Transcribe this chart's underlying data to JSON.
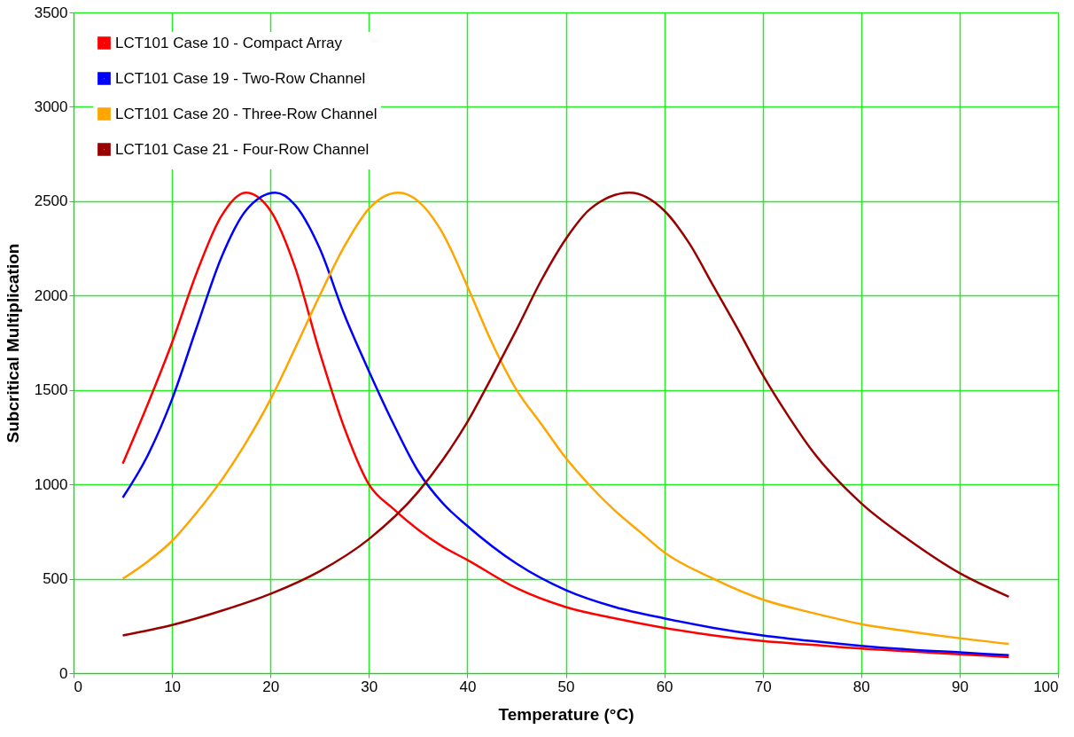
{
  "chart_data": {
    "type": "line",
    "xlabel": "Temperature (°C)",
    "ylabel": "Subcritical Multiplication",
    "xlim": [
      0,
      100
    ],
    "ylim": [
      0,
      3500
    ],
    "xticks": [
      0,
      10,
      20,
      30,
      40,
      50,
      60,
      70,
      80,
      90,
      100
    ],
    "yticks": [
      0,
      500,
      1000,
      1500,
      2000,
      2500,
      3000,
      3500
    ],
    "grid": true,
    "legend": "top left",
    "marker": "none",
    "line_style": "solid",
    "series": [
      {
        "name": "LCT101 Case 10 - Compact Array",
        "color": "#ff0000",
        "x": [
          5,
          7.5,
          10,
          12.5,
          15,
          17.5,
          20,
          22.5,
          25,
          27.5,
          30,
          32.5,
          35,
          37.5,
          40,
          45,
          50,
          55,
          60,
          65,
          70,
          75,
          80,
          85,
          90,
          95
        ],
        "values": [
          1110,
          1420,
          1750,
          2120,
          2420,
          2545,
          2450,
          2150,
          1700,
          1300,
          1000,
          870,
          760,
          670,
          600,
          450,
          350,
          290,
          240,
          200,
          170,
          150,
          130,
          115,
          100,
          85
        ]
      },
      {
        "name": "LCT101 Case 19 - Two-Row Channel",
        "color": "#0000ff",
        "x": [
          5,
          7.5,
          10,
          12.5,
          15,
          17.5,
          20.5,
          22.5,
          25,
          27.5,
          30,
          32.5,
          35,
          37.5,
          40,
          45,
          50,
          55,
          60,
          65,
          70,
          75,
          80,
          85,
          90,
          95
        ],
        "values": [
          930,
          1150,
          1450,
          1830,
          2200,
          2450,
          2545,
          2480,
          2250,
          1900,
          1600,
          1320,
          1070,
          900,
          780,
          580,
          440,
          350,
          290,
          240,
          200,
          170,
          145,
          125,
          110,
          95
        ]
      },
      {
        "name": "LCT101 Case 20 - Three-Row Channel",
        "color": "#ffa500",
        "x": [
          5,
          7.5,
          10,
          12.5,
          15,
          17.5,
          20,
          22.5,
          25,
          27.5,
          30,
          33,
          35,
          37.5,
          40,
          42.5,
          45,
          47.5,
          50,
          52.5,
          55,
          57.5,
          60,
          65,
          70,
          75,
          80,
          85,
          90,
          95
        ],
        "values": [
          500,
          590,
          700,
          850,
          1020,
          1220,
          1450,
          1720,
          2000,
          2260,
          2460,
          2545,
          2500,
          2330,
          2050,
          1750,
          1500,
          1320,
          1140,
          990,
          860,
          750,
          640,
          500,
          390,
          320,
          260,
          220,
          185,
          155
        ]
      },
      {
        "name": "LCT101 Case 21 - Four-Row Channel",
        "color": "#990000",
        "x": [
          5,
          10,
          15,
          20,
          25,
          30,
          35,
          37.5,
          40,
          42.5,
          45,
          47.5,
          50,
          52.5,
          56.5,
          60,
          62.5,
          65,
          67.5,
          70,
          72.5,
          75,
          80,
          85,
          90,
          95
        ],
        "values": [
          200,
          255,
          330,
          420,
          540,
          710,
          960,
          1130,
          1330,
          1570,
          1820,
          2080,
          2300,
          2460,
          2545,
          2450,
          2280,
          2050,
          1820,
          1580,
          1370,
          1180,
          900,
          700,
          530,
          405
        ]
      }
    ]
  }
}
